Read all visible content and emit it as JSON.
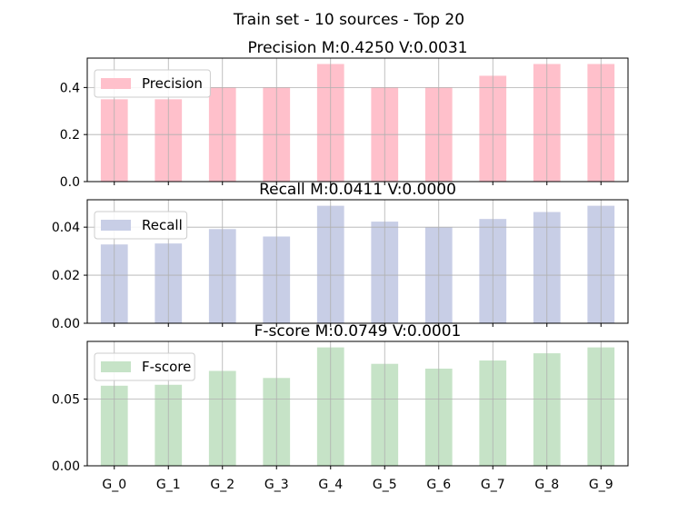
{
  "figure_title": "Train set - 10 sources - Top 20",
  "chart_data": [
    {
      "type": "bar",
      "title": "Precision M:0.4250 V:0.0031",
      "categories": [
        "G_0",
        "G_1",
        "G_2",
        "G_3",
        "G_4",
        "G_5",
        "G_6",
        "G_7",
        "G_8",
        "G_9"
      ],
      "series": [
        {
          "name": "Precision",
          "values": [
            0.35,
            0.35,
            0.4,
            0.4,
            0.5,
            0.4,
            0.4,
            0.45,
            0.5,
            0.5
          ],
          "color": "#ffc0cb"
        }
      ],
      "ylim": [
        0,
        0.525
      ],
      "yticks": [
        0.0,
        0.2,
        0.4
      ],
      "ytick_labels": [
        "0.0",
        "0.2",
        "0.4"
      ],
      "grid": true,
      "legend": "top-left",
      "show_xticklabels": false
    },
    {
      "type": "bar",
      "title": "Recall M:0.0411 V:0.0000",
      "categories": [
        "G_0",
        "G_1",
        "G_2",
        "G_3",
        "G_4",
        "G_5",
        "G_6",
        "G_7",
        "G_8",
        "G_9"
      ],
      "series": [
        {
          "name": "Recall",
          "values": [
            0.0328,
            0.0332,
            0.0392,
            0.0361,
            0.0489,
            0.0423,
            0.0399,
            0.0434,
            0.0463,
            0.0489
          ],
          "color": "#c8cee6"
        }
      ],
      "ylim": [
        0,
        0.0514
      ],
      "yticks": [
        0.0,
        0.02,
        0.04
      ],
      "ytick_labels": [
        "0.00",
        "0.02",
        "0.04"
      ],
      "grid": true,
      "legend": "top-left",
      "show_xticklabels": false
    },
    {
      "type": "bar",
      "title": "F-score M:0.0749 V:0.0001",
      "categories": [
        "G_0",
        "G_1",
        "G_2",
        "G_3",
        "G_4",
        "G_5",
        "G_6",
        "G_7",
        "G_8",
        "G_9"
      ],
      "series": [
        {
          "name": "F-score",
          "values": [
            0.06,
            0.0607,
            0.0711,
            0.0658,
            0.0887,
            0.0764,
            0.0728,
            0.0789,
            0.0843,
            0.0887
          ],
          "color": "#c6e3c7"
        }
      ],
      "ylim": [
        0,
        0.0932
      ],
      "yticks": [
        0.0,
        0.05
      ],
      "ytick_labels": [
        "0.00",
        "0.05"
      ],
      "grid": true,
      "legend": "top-left",
      "show_xticklabels": true
    }
  ]
}
